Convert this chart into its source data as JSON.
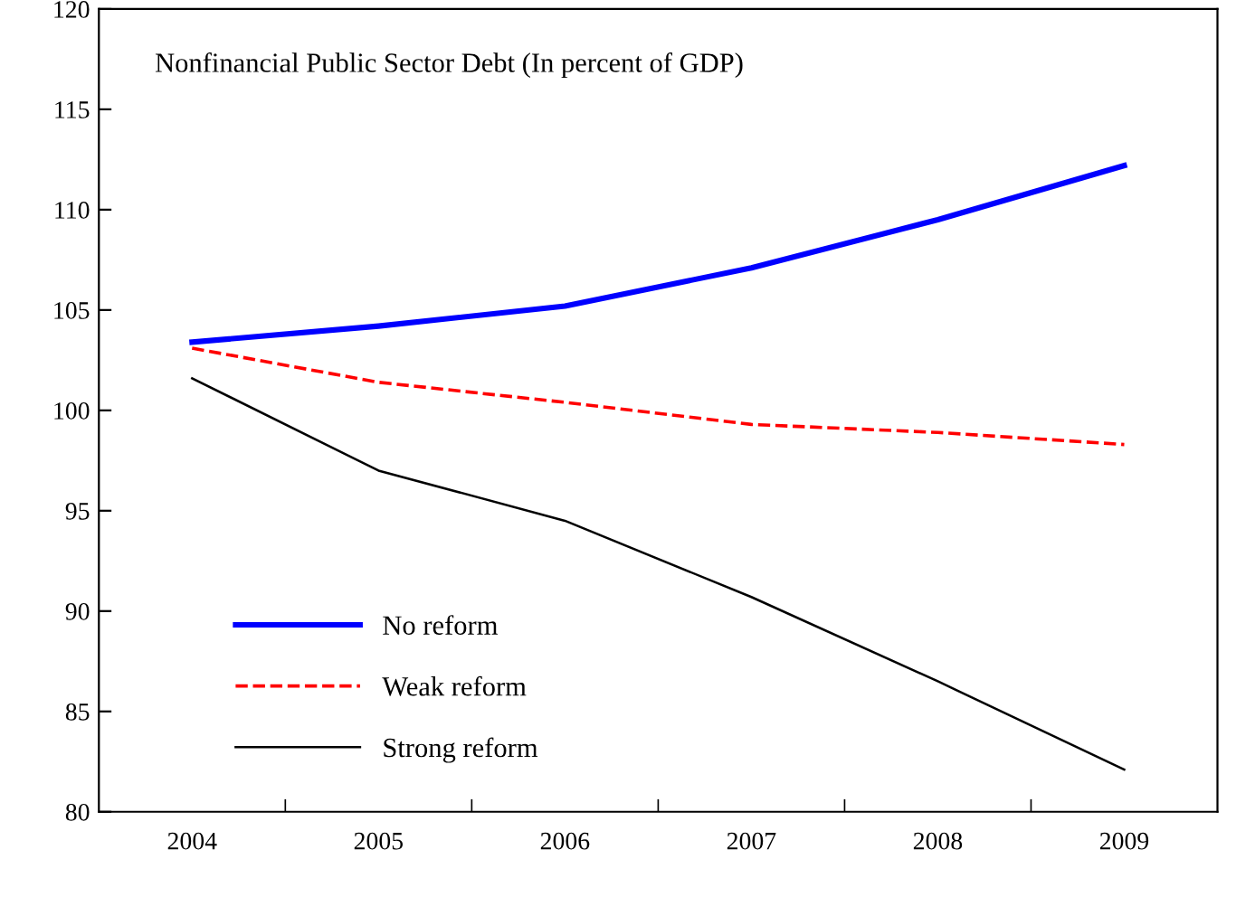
{
  "chart_data": {
    "type": "line",
    "title": "Nonfinancial Public Sector Debt (In percent of GDP)",
    "categories": [
      "2004",
      "2005",
      "2006",
      "2007",
      "2008",
      "2009"
    ],
    "series": [
      {
        "name": "No reform",
        "color": "#0000ff",
        "values": [
          103.4,
          104.2,
          105.2,
          107.1,
          109.5,
          112.2
        ],
        "line_style": "solid"
      },
      {
        "name": "Weak reform",
        "color": "#ff0000",
        "values": [
          103.1,
          101.4,
          100.4,
          99.3,
          98.9,
          98.3
        ],
        "line_style": "dashed"
      },
      {
        "name": "Strong reform",
        "color": "#000000",
        "values": [
          101.6,
          97.0,
          94.5,
          90.7,
          86.5,
          82.1
        ],
        "line_style": "solid"
      }
    ],
    "ylim": [
      80,
      120
    ],
    "yticks": [
      80,
      85,
      90,
      95,
      100,
      105,
      110,
      115,
      120
    ],
    "grid": false,
    "legend": "bottom left",
    "marker": "none"
  }
}
